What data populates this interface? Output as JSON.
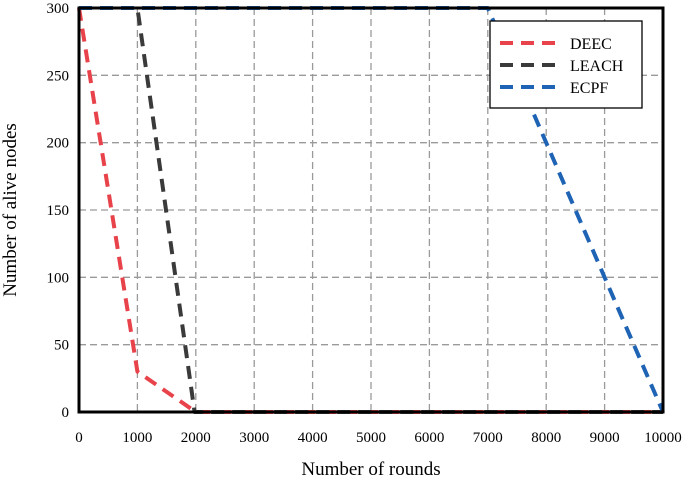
{
  "chart_data": {
    "type": "line",
    "title": "",
    "xlabel": "Number of rounds",
    "ylabel": "Number of alive nodes",
    "xlim": [
      0,
      10000
    ],
    "ylim": [
      0,
      300
    ],
    "xticks": [
      0,
      1000,
      2000,
      3000,
      4000,
      5000,
      6000,
      7000,
      8000,
      9000,
      10000
    ],
    "yticks": [
      0,
      50,
      100,
      150,
      200,
      250,
      300
    ],
    "grid": true,
    "legend_position": "top-right",
    "series": [
      {
        "name": "DEEC",
        "color": "#e8424a",
        "x": [
          0,
          1000,
          2000,
          10000
        ],
        "y": [
          300,
          30,
          0,
          0
        ]
      },
      {
        "name": "LEACH",
        "color": "#3a3a3a",
        "x": [
          0,
          1000,
          1980,
          10000
        ],
        "y": [
          300,
          300,
          0,
          0
        ]
      },
      {
        "name": "ECPF",
        "color": "#1f63b4",
        "x": [
          0,
          7000,
          10000
        ],
        "y": [
          300,
          300,
          0
        ]
      }
    ]
  }
}
